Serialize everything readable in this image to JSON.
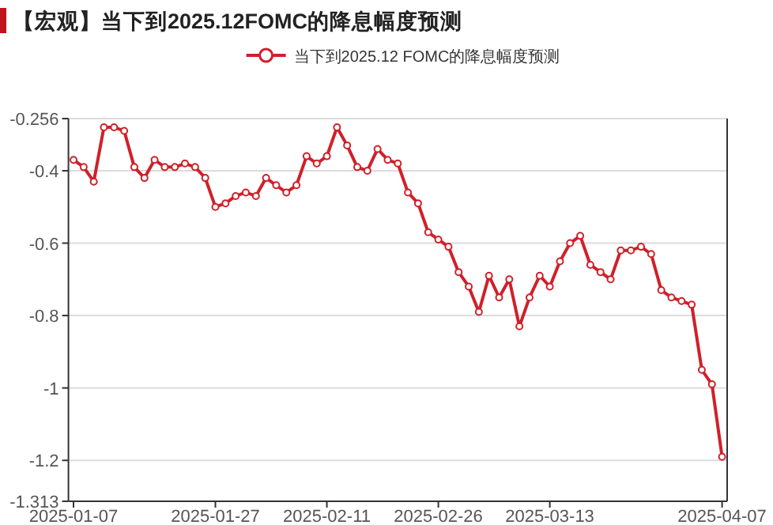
{
  "chart_data": {
    "type": "line",
    "title": "【宏观】当下到2025.12FOMC的降息幅度预测",
    "categories": [
      "2025-01-07",
      null,
      null,
      null,
      null,
      null,
      null,
      null,
      null,
      null,
      null,
      null,
      null,
      null,
      "2025-01-27",
      null,
      null,
      null,
      null,
      null,
      null,
      null,
      null,
      null,
      null,
      "2025-02-11",
      null,
      null,
      null,
      null,
      null,
      null,
      null,
      null,
      null,
      null,
      "2025-02-26",
      null,
      null,
      null,
      null,
      null,
      null,
      null,
      null,
      null,
      null,
      "2025-03-13",
      null,
      null,
      null,
      null,
      null,
      null,
      null,
      null,
      null,
      null,
      null,
      null,
      null,
      null,
      null,
      null,
      "2025-04-07"
    ],
    "series": [
      {
        "name": "当下到2025.12 FOMC的降息幅度预测",
        "color": "#d0202a",
        "values": [
          -0.37,
          -0.39,
          -0.43,
          -0.28,
          -0.28,
          -0.29,
          -0.39,
          -0.42,
          -0.37,
          -0.39,
          -0.39,
          -0.38,
          -0.39,
          -0.42,
          -0.5,
          -0.49,
          -0.47,
          -0.46,
          -0.47,
          -0.42,
          -0.44,
          -0.46,
          -0.44,
          -0.36,
          -0.38,
          -0.36,
          -0.28,
          -0.33,
          -0.39,
          -0.4,
          -0.34,
          -0.37,
          -0.38,
          -0.46,
          -0.49,
          -0.57,
          -0.59,
          -0.61,
          -0.68,
          -0.72,
          -0.79,
          -0.69,
          -0.75,
          -0.7,
          -0.83,
          -0.75,
          -0.69,
          -0.72,
          -0.65,
          -0.6,
          -0.58,
          -0.66,
          -0.68,
          -0.7,
          -0.62,
          -0.62,
          -0.61,
          -0.63,
          -0.73,
          -0.75,
          -0.76,
          -0.77,
          -0.95,
          -0.99,
          -1.19
        ]
      }
    ],
    "ylim": [
      -1.313,
      -0.256
    ],
    "yticks": [
      -0.256,
      -0.4,
      -0.6,
      -0.8,
      -1,
      -1.2,
      -1.313
    ],
    "grid": "y",
    "legend": "top",
    "marker": "circle",
    "line_style": "solid"
  }
}
